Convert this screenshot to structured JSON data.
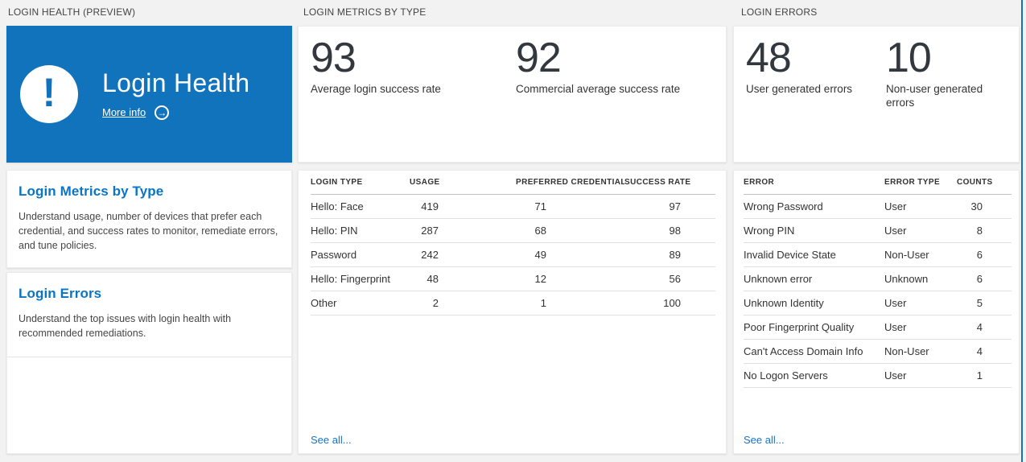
{
  "ui": {
    "accent_color": "#1173bc",
    "link_color": "#1673c9",
    "heading_color": "#0a74c7",
    "background_color": "#f2f2f2",
    "icons": {
      "tile": "exclamation-icon",
      "more_info": "arrow-right-circle-icon"
    }
  },
  "health": {
    "header": "LOGIN HEALTH (PREVIEW)",
    "tile": {
      "title": "Login Health",
      "more_info_label": "More info",
      "exclamation_glyph": "!",
      "arrow_glyph": "→"
    },
    "sections": [
      {
        "title": "Login Metrics by Type",
        "description": "Understand usage, number of devices that prefer each credential, and success rates to monitor, remediate errors, and tune policies."
      },
      {
        "title": "Login Errors",
        "description": "Understand the top issues with login health with recommended remediations."
      }
    ]
  },
  "metrics": {
    "header": "LOGIN METRICS BY TYPE",
    "stats": [
      {
        "value": "93",
        "label": "Average login success rate"
      },
      {
        "value": "92",
        "label": "Commercial average success rate"
      }
    ],
    "table": {
      "columns": [
        "LOGIN TYPE",
        "USAGE",
        "PREFERRED CREDENTIAL",
        "SUCCESS RATE"
      ],
      "rows": [
        [
          "Hello: Face",
          "419",
          "71",
          "97"
        ],
        [
          "Hello: PIN",
          "287",
          "68",
          "98"
        ],
        [
          "Password",
          "242",
          "49",
          "89"
        ],
        [
          "Hello: Fingerprint",
          "48",
          "12",
          "56"
        ],
        [
          "Other",
          "2",
          "1",
          "100"
        ]
      ]
    },
    "see_all_label": "See all..."
  },
  "errors": {
    "header": "LOGIN ERRORS",
    "stats": [
      {
        "value": "48",
        "label": "User generated errors"
      },
      {
        "value": "10",
        "label": "Non-user generated errors"
      }
    ],
    "table": {
      "columns": [
        "ERROR",
        "ERROR TYPE",
        "COUNTS"
      ],
      "rows": [
        [
          "Wrong Password",
          "User",
          "30"
        ],
        [
          "Wrong PIN",
          "User",
          "8"
        ],
        [
          "Invalid Device State",
          "Non-User",
          "6"
        ],
        [
          "Unknown error",
          "Unknown",
          "6"
        ],
        [
          "Unknown Identity",
          "User",
          "5"
        ],
        [
          "Poor Fingerprint Quality",
          "User",
          "4"
        ],
        [
          "Can't Access Domain Info",
          "Non-User",
          "4"
        ],
        [
          "No Logon Servers",
          "User",
          "1"
        ]
      ]
    },
    "see_all_label": "See all..."
  }
}
